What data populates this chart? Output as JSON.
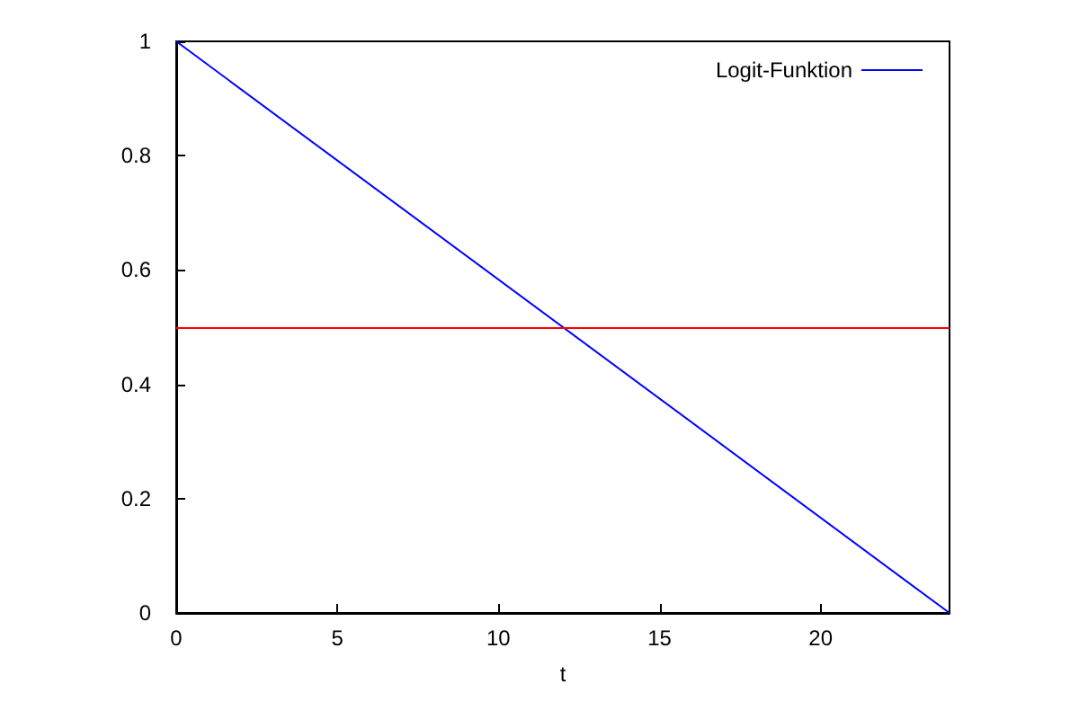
{
  "chart_data": {
    "type": "line",
    "xlabel": "t",
    "x": [
      0,
      24
    ],
    "series": [
      {
        "name": "Logit-Funktion",
        "color": "#0000ff",
        "values": [
          1,
          0
        ]
      }
    ],
    "xlim": [
      0,
      24
    ],
    "xticks": [
      0,
      5,
      10,
      15,
      20
    ],
    "ylim": [
      0,
      1
    ],
    "yticks": [
      0,
      0.2,
      0.4,
      0.6,
      0.8,
      1
    ],
    "ref_lines": [
      {
        "axis": "y",
        "value": 0.5,
        "color": "#ff0000"
      }
    ],
    "grid": false,
    "legend": "top right",
    "marker": "none",
    "line_style": "solid"
  }
}
